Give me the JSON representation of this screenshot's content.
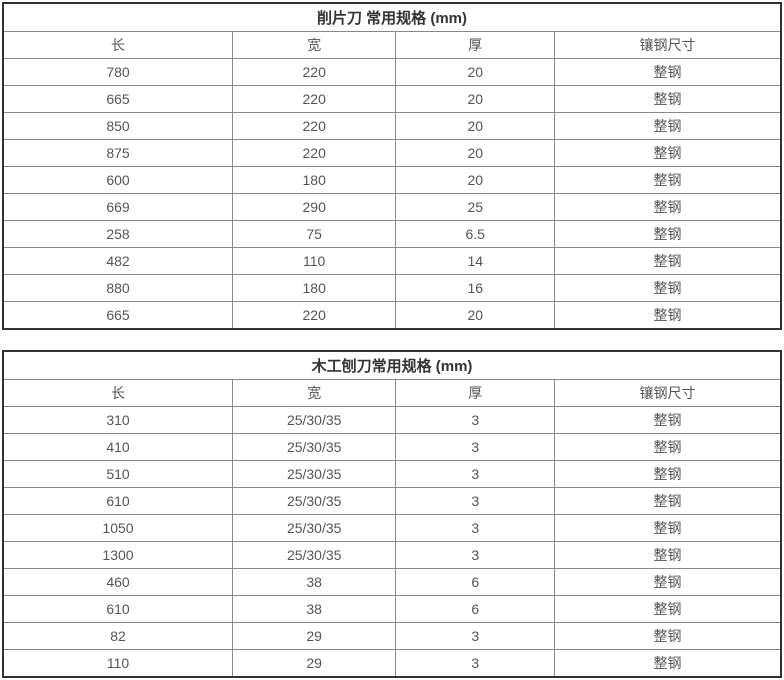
{
  "chart_data": [
    {
      "type": "table",
      "title": "削片刀 常用规格 (mm)",
      "columns": [
        "长",
        "宽",
        "厚",
        "镶钢尺寸"
      ],
      "rows": [
        [
          "780",
          "220",
          "20",
          "整钢"
        ],
        [
          "665",
          "220",
          "20",
          "整钢"
        ],
        [
          "850",
          "220",
          "20",
          "整钢"
        ],
        [
          "875",
          "220",
          "20",
          "整钢"
        ],
        [
          "600",
          "180",
          "20",
          "整钢"
        ],
        [
          "669",
          "290",
          "25",
          "整钢"
        ],
        [
          "258",
          "75",
          "6.5",
          "整钢"
        ],
        [
          "482",
          "110",
          "14",
          "整钢"
        ],
        [
          "880",
          "180",
          "16",
          "整钢"
        ],
        [
          "665",
          "220",
          "20",
          "整钢"
        ]
      ]
    },
    {
      "type": "table",
      "title": "木工刨刀常用规格 (mm)",
      "columns": [
        "长",
        "宽",
        "厚",
        "镶钢尺寸"
      ],
      "rows": [
        [
          "310",
          "25/30/35",
          "3",
          "整钢"
        ],
        [
          "410",
          "25/30/35",
          "3",
          "整钢"
        ],
        [
          "510",
          "25/30/35",
          "3",
          "整钢"
        ],
        [
          "610",
          "25/30/35",
          "3",
          "整钢"
        ],
        [
          "1050",
          "25/30/35",
          "3",
          "整钢"
        ],
        [
          "1300",
          "25/30/35",
          "3",
          "整钢"
        ],
        [
          "460",
          "38",
          "6",
          "整钢"
        ],
        [
          "610",
          "38",
          "6",
          "整钢"
        ],
        [
          "82",
          "29",
          "3",
          "整钢"
        ],
        [
          "110",
          "29",
          "3",
          "整钢"
        ]
      ]
    }
  ],
  "colors": {
    "outer_border": "#333333",
    "inner_border": "#888888",
    "title_text": "#333333",
    "cell_text": "#555555",
    "background": "#ffffff"
  }
}
